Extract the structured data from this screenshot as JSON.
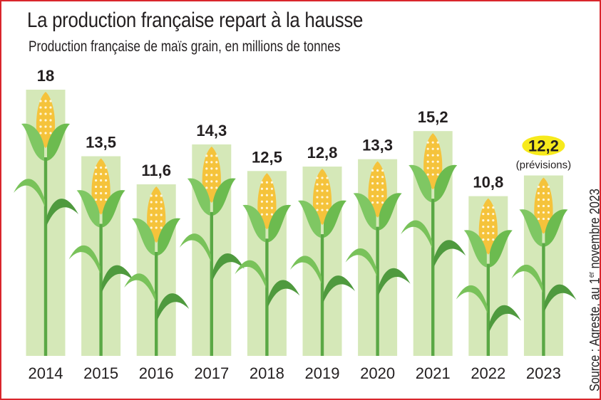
{
  "chart_data": {
    "type": "bar",
    "title": "La production française repart à la hausse",
    "subtitle": "Production française de maïs grain, en millions de tonnes",
    "categories": [
      "2014",
      "2015",
      "2016",
      "2017",
      "2018",
      "2019",
      "2020",
      "2021",
      "2022",
      "2023"
    ],
    "values": [
      18,
      13.5,
      11.6,
      14.3,
      12.5,
      12.8,
      13.3,
      15.2,
      10.8,
      12.2
    ],
    "data_labels": [
      "18",
      "13,5",
      "11,6",
      "14,3",
      "12,5",
      "12,8",
      "13,3",
      "15,2",
      "10,8",
      "12,2"
    ],
    "highlight": {
      "category": "2023",
      "note": "(prévisions)",
      "color": "#f7ea1c"
    },
    "source": {
      "prefix": "Source : Agreste, au 1",
      "sup": "er",
      "suffix": " novembre 2023"
    },
    "ylim": [
      0,
      18
    ],
    "grid": false,
    "colors": {
      "bar": "#d5e8b8",
      "cob": "#f5c33b",
      "husk": "#6cbb4f",
      "stalk": "#5aa845",
      "leaf": "#4f9a3e",
      "frame": "#d9262c"
    }
  }
}
